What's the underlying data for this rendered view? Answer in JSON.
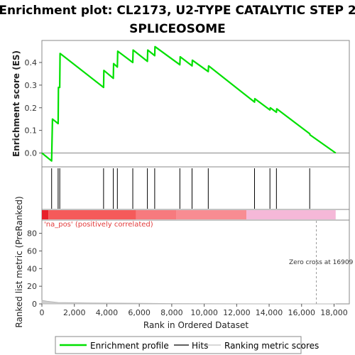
{
  "chart_data": {
    "type": "line",
    "title_line1": "Enrichment plot: CL2173, U2-TYPE CATALYTIC STEP 2",
    "title_line2": "SPLICEOSOME",
    "xlabel": "Rank in Ordered Dataset",
    "ylabel_top": "Enrichment score (ES)",
    "ylabel_bottom": "Ranked list metric (PreRanked)",
    "xlim": [
      0,
      19000
    ],
    "es_ylim": [
      -0.06,
      0.49
    ],
    "metric_ylim": [
      0,
      95
    ],
    "x_ticks": [
      0,
      2000,
      4000,
      6000,
      8000,
      10000,
      12000,
      14000,
      16000,
      18000
    ],
    "x_tick_labels": [
      "0",
      "2,000",
      "4,000",
      "6,000",
      "8,000",
      "10,000",
      "12,000",
      "14,000",
      "16,000",
      "18,000"
    ],
    "es_ticks": [
      0.0,
      0.1,
      0.2,
      0.3,
      0.4
    ],
    "es_tick_labels": [
      "0.0",
      "0.1",
      "0.2",
      "0.3",
      "0.4"
    ],
    "metric_ticks": [
      0,
      20,
      40,
      60,
      80
    ],
    "metric_tick_labels": [
      "0",
      "20",
      "40",
      "60",
      "80"
    ],
    "series": [
      {
        "name": "Enrichment profile",
        "color": "#00e000",
        "x": [
          0,
          600,
          650,
          1000,
          1020,
          1100,
          1120,
          3800,
          3820,
          4400,
          4420,
          4650,
          4670,
          5600,
          5620,
          6500,
          6520,
          6950,
          6970,
          8500,
          8520,
          9250,
          9270,
          10250,
          10270,
          13100,
          13120,
          14050,
          14070,
          14450,
          14470,
          16500,
          16520,
          18100
        ],
        "y": [
          0.0,
          -0.035,
          0.15,
          0.13,
          0.29,
          0.29,
          0.44,
          0.29,
          0.365,
          0.33,
          0.395,
          0.38,
          0.45,
          0.4,
          0.455,
          0.405,
          0.455,
          0.43,
          0.47,
          0.39,
          0.425,
          0.385,
          0.41,
          0.36,
          0.385,
          0.225,
          0.24,
          0.19,
          0.2,
          0.18,
          0.195,
          0.085,
          0.08,
          0.0
        ]
      }
    ],
    "hits": [
      600,
      1000,
      1100,
      3800,
      4400,
      4650,
      5600,
      6500,
      6950,
      8500,
      9250,
      10250,
      13100,
      14050,
      14450,
      16500
    ],
    "ranking_metric": {
      "name": "Ranking metric scores",
      "x": [
        0,
        300,
        1000,
        3000,
        5700,
        8000,
        12000,
        16909,
        18100
      ],
      "y": [
        4,
        3,
        1.5,
        1.0,
        0.7,
        0.3,
        0.1,
        0.0,
        -0.2
      ]
    },
    "colorbar_segments": [
      {
        "x0": 0,
        "x1": 400,
        "color": "#e8202a"
      },
      {
        "x0": 400,
        "x1": 5800,
        "color": "#f55a5a"
      },
      {
        "x0": 5800,
        "x1": 8300,
        "color": "#f77a7e"
      },
      {
        "x0": 8300,
        "x1": 12600,
        "color": "#f88c92"
      },
      {
        "x0": 12600,
        "x1": 18100,
        "color": "#f5b8d8"
      }
    ],
    "pos_label": "'na_pos' (positively correlated)",
    "zero_cross_label": "Zero cross at 16909",
    "zero_cross_x": 16909,
    "legend": [
      {
        "label": "Enrichment profile",
        "color": "#00e000"
      },
      {
        "label": "Hits",
        "color": "#000000"
      },
      {
        "label": "Ranking metric scores",
        "color": "#c0c0c0"
      }
    ]
  }
}
